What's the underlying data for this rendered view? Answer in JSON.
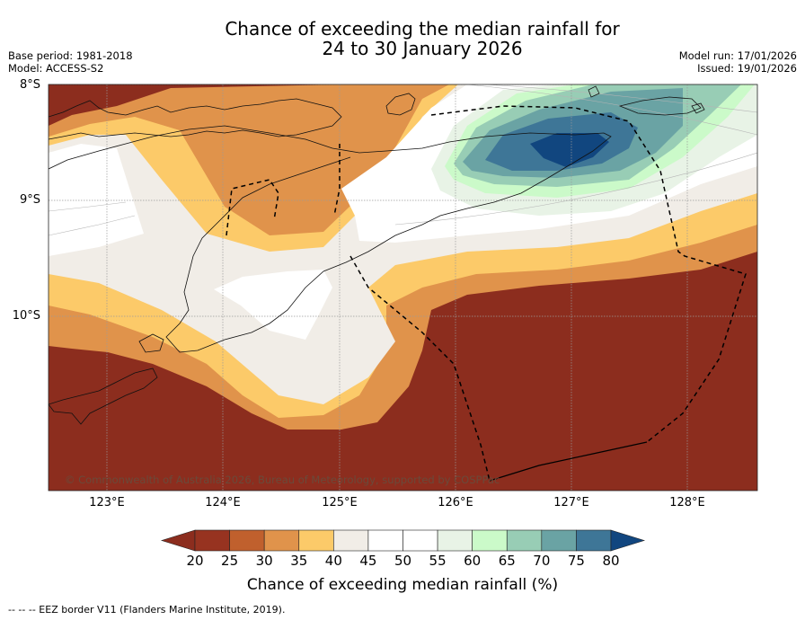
{
  "title": {
    "line1": "Chance of exceeding the median rainfall for",
    "line2": "24 to 30 January 2026"
  },
  "meta": {
    "base_period": "Base period: 1981-2018",
    "model": "Model: ACCESS-S2",
    "model_run": "Model run: 17/01/2026",
    "issued": "Issued: 19/01/2026"
  },
  "map": {
    "lat_labels": [
      "8°S",
      "9°S",
      "10°S"
    ],
    "lon_labels": [
      "123°E",
      "124°E",
      "125°E",
      "126°E",
      "127°E",
      "128°E"
    ],
    "copyright": "© Commonwealth of Australia 2026, Bureau of Meteorology, supported by COSPPac",
    "colors": {
      "below_20": "#8c2d1e",
      "c20_25": "#973320",
      "c25_30": "#c0602d",
      "c30_35": "#e0934b",
      "c35_40": "#fcca69",
      "c40_45": "#f1ede7",
      "c45_55": "#ffffff",
      "c55_60": "#e8f3e6",
      "c60_65": "#cbfac9",
      "c65_70": "#98cdb5",
      "c70_75": "#6aa3a4",
      "c75_80": "#3e7697",
      "above_80": "#11467f"
    }
  },
  "colorbar": {
    "ticks": [
      "20",
      "25",
      "30",
      "35",
      "40",
      "45",
      "50",
      "55",
      "60",
      "65",
      "70",
      "75",
      "80"
    ],
    "colors": [
      "#973320",
      "#c0602d",
      "#e0934b",
      "#fcca69",
      "#f1ede7",
      "#ffffff",
      "#ffffff",
      "#e8f3e6",
      "#cbfac9",
      "#98cdb5",
      "#6aa3a4",
      "#3e7697"
    ],
    "under_color": "#8c2d1e",
    "over_color": "#11467f",
    "label": "Chance of exceeding median rainfall (%)"
  },
  "footnote": "--  --  -- EEZ border V11 (Flanders Marine Institute, 2019)."
}
